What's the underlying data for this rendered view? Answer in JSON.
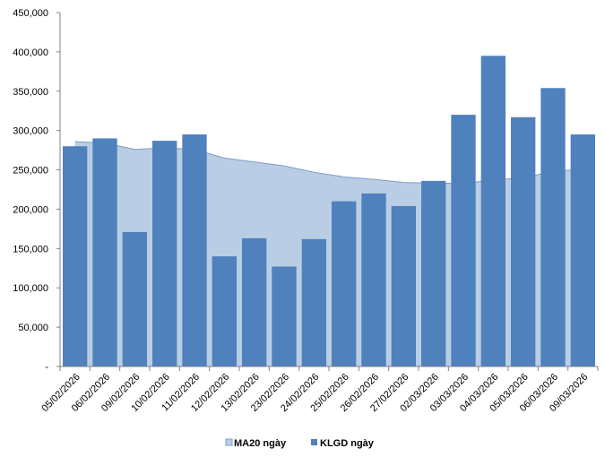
{
  "chart_data": {
    "type": "bar",
    "title": "",
    "xlabel": "",
    "ylabel": "",
    "ylim": [
      0,
      450000
    ],
    "y_ticks": [
      0,
      50000,
      100000,
      150000,
      200000,
      250000,
      300000,
      350000,
      400000,
      450000
    ],
    "y_tick_labels": [
      "-",
      "50,000",
      "100,000",
      "150,000",
      "200,000",
      "250,000",
      "300,000",
      "350,000",
      "400,000",
      "450,000"
    ],
    "grid": false,
    "legend_position": "bottom",
    "categories": [
      "05/02/2026",
      "06/02/2026",
      "09/02/2026",
      "10/02/2026",
      "11/02/2026",
      "12/02/2026",
      "13/02/2026",
      "23/02/2026",
      "24/02/2026",
      "25/02/2026",
      "26/02/2026",
      "27/02/2026",
      "02/03/2026",
      "03/03/2026",
      "04/03/2026",
      "05/03/2026",
      "06/03/2026",
      "09/03/2026"
    ],
    "series": [
      {
        "name": "MA20 ngày",
        "kind": "area",
        "color": "#B9CDE5",
        "values": [
          286000,
          284000,
          276000,
          278000,
          276000,
          265000,
          260000,
          255000,
          247000,
          241000,
          238000,
          234000,
          233000,
          233000,
          237000,
          240000,
          248000,
          251000
        ]
      },
      {
        "name": "KLGD ngày",
        "kind": "bar",
        "color": "#4F81BD",
        "values": [
          280000,
          290000,
          171000,
          287000,
          295000,
          140000,
          163000,
          127000,
          162000,
          210000,
          220000,
          204000,
          236000,
          320000,
          395000,
          317000,
          354000,
          295000
        ]
      }
    ]
  }
}
